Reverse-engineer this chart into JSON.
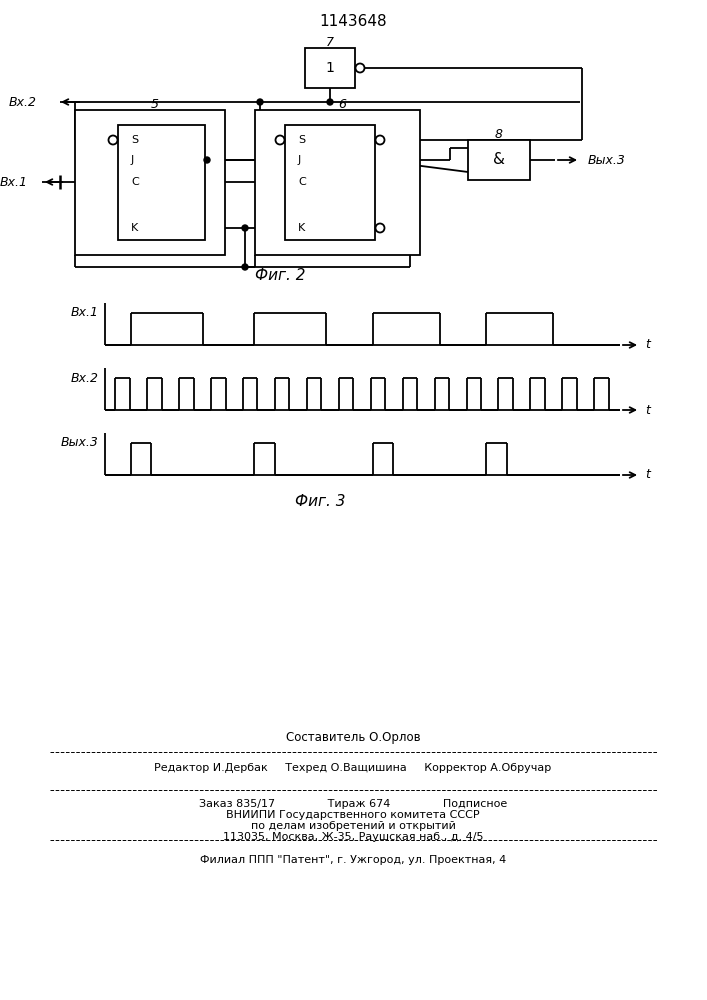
{
  "title": "1143648",
  "fig2_caption": "Фиг. 2",
  "fig3_caption": "Фиг. 3",
  "background_color": "#ffffff",
  "line_color": "#000000",
  "footer_lines": [
    "Составитель О.Орлов",
    "Редактор И.Дербак     Техред О.Ващишина     Корректор А.Обручар",
    "Заказ 835/17               Тираж 674               Подписное",
    "ВНИИПИ Государственного комитета СССР",
    "по делам изобретений и открытий",
    "113035, Москва, Ж-35, Раушская наб., д. 4/5",
    "Филиал ППП \"Патент\", г. Ужгород, ул. Проектная, 4"
  ]
}
